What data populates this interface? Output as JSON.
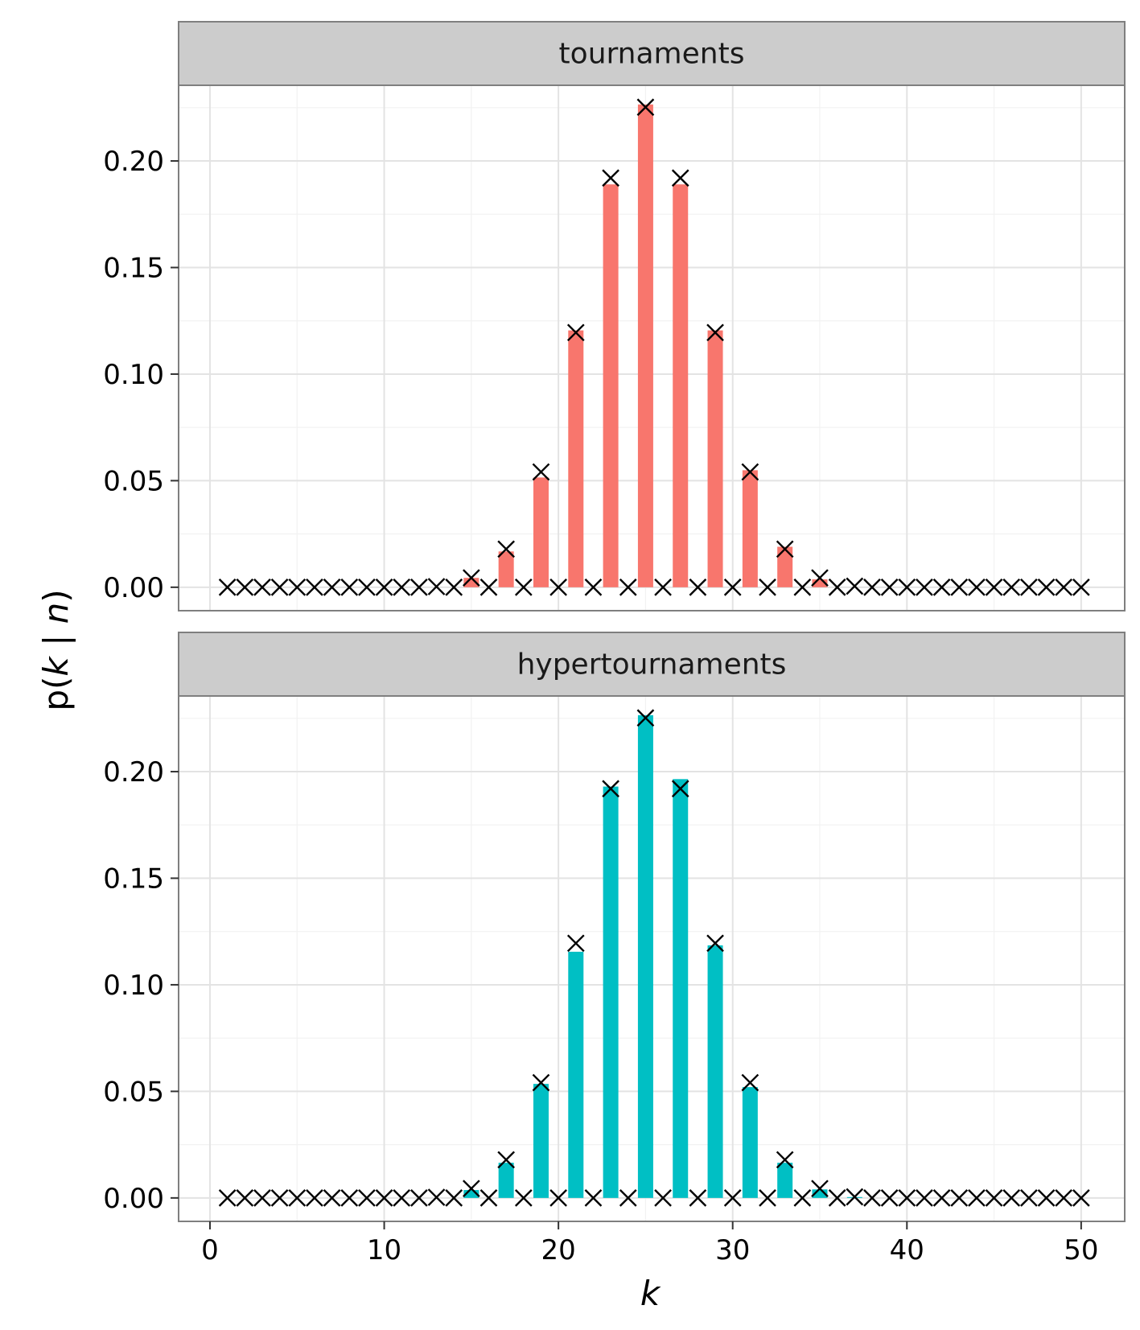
{
  "chart_data": {
    "type": "bar",
    "xlabel": "k",
    "ylabel": "p(k | n)",
    "xlim": [
      -1.8,
      52.5
    ],
    "ylim": [
      -0.011,
      0.2355
    ],
    "x_ticks": [
      "0",
      "10",
      "20",
      "30",
      "40",
      "50"
    ],
    "y_ticks": [
      "0.00",
      "0.05",
      "0.10",
      "0.15",
      "0.20"
    ],
    "grid": true,
    "legend": "none",
    "panels": [
      {
        "strip": "tournaments",
        "color": "#F8766D",
        "bars": [
          {
            "k": 15,
            "p": 0.0044
          },
          {
            "k": 17,
            "p": 0.0168
          },
          {
            "k": 19,
            "p": 0.0515
          },
          {
            "k": 21,
            "p": 0.1205
          },
          {
            "k": 23,
            "p": 0.189
          },
          {
            "k": 25,
            "p": 0.2265
          },
          {
            "k": 27,
            "p": 0.189
          },
          {
            "k": 29,
            "p": 0.1205
          },
          {
            "k": 31,
            "p": 0.0549
          },
          {
            "k": 33,
            "p": 0.019
          },
          {
            "k": 35,
            "p": 0.0037
          }
        ],
        "markers": [
          {
            "k": 1,
            "p": 0
          },
          {
            "k": 2,
            "p": 0
          },
          {
            "k": 3,
            "p": 0
          },
          {
            "k": 4,
            "p": 0
          },
          {
            "k": 5,
            "p": 0
          },
          {
            "k": 6,
            "p": 0
          },
          {
            "k": 7,
            "p": 0
          },
          {
            "k": 8,
            "p": 0
          },
          {
            "k": 9,
            "p": 0
          },
          {
            "k": 10,
            "p": 0
          },
          {
            "k": 11,
            "p": 0
          },
          {
            "k": 12,
            "p": 0
          },
          {
            "k": 13,
            "p": 0.0003
          },
          {
            "k": 14,
            "p": 0
          },
          {
            "k": 15,
            "p": 0.0044
          },
          {
            "k": 16,
            "p": 0
          },
          {
            "k": 17,
            "p": 0.0179
          },
          {
            "k": 18,
            "p": 0
          },
          {
            "k": 19,
            "p": 0.0541
          },
          {
            "k": 20,
            "p": 0
          },
          {
            "k": 21,
            "p": 0.1195
          },
          {
            "k": 22,
            "p": 0
          },
          {
            "k": 23,
            "p": 0.192
          },
          {
            "k": 24,
            "p": 0
          },
          {
            "k": 25,
            "p": 0.2252
          },
          {
            "k": 26,
            "p": 0
          },
          {
            "k": 27,
            "p": 0.192
          },
          {
            "k": 28,
            "p": 0
          },
          {
            "k": 29,
            "p": 0.1195
          },
          {
            "k": 30,
            "p": 0
          },
          {
            "k": 31,
            "p": 0.0541
          },
          {
            "k": 32,
            "p": 0
          },
          {
            "k": 33,
            "p": 0.0179
          },
          {
            "k": 34,
            "p": 0
          },
          {
            "k": 35,
            "p": 0.0044
          },
          {
            "k": 36,
            "p": 0
          },
          {
            "k": 37,
            "p": 0.0005
          },
          {
            "k": 38,
            "p": 0
          },
          {
            "k": 39,
            "p": 0
          },
          {
            "k": 40,
            "p": 0
          },
          {
            "k": 41,
            "p": 0
          },
          {
            "k": 42,
            "p": 0
          },
          {
            "k": 43,
            "p": 0
          },
          {
            "k": 44,
            "p": 0
          },
          {
            "k": 45,
            "p": 0
          },
          {
            "k": 46,
            "p": 0
          },
          {
            "k": 47,
            "p": 0
          },
          {
            "k": 48,
            "p": 0
          },
          {
            "k": 49,
            "p": 0
          },
          {
            "k": 50,
            "p": 0
          }
        ]
      },
      {
        "strip": "hypertournaments",
        "color": "#00BFC4",
        "bars": [
          {
            "k": 15,
            "p": 0.0037
          },
          {
            "k": 17,
            "p": 0.0165
          },
          {
            "k": 19,
            "p": 0.0535
          },
          {
            "k": 21,
            "p": 0.1155
          },
          {
            "k": 23,
            "p": 0.193
          },
          {
            "k": 25,
            "p": 0.2265
          },
          {
            "k": 27,
            "p": 0.1965
          },
          {
            "k": 29,
            "p": 0.1185
          },
          {
            "k": 31,
            "p": 0.052
          },
          {
            "k": 33,
            "p": 0.0165
          },
          {
            "k": 35,
            "p": 0.004
          },
          {
            "k": 37,
            "p": 0.0004
          }
        ],
        "markers": [
          {
            "k": 1,
            "p": 0
          },
          {
            "k": 2,
            "p": 0
          },
          {
            "k": 3,
            "p": 0
          },
          {
            "k": 4,
            "p": 0
          },
          {
            "k": 5,
            "p": 0
          },
          {
            "k": 6,
            "p": 0
          },
          {
            "k": 7,
            "p": 0
          },
          {
            "k": 8,
            "p": 0
          },
          {
            "k": 9,
            "p": 0
          },
          {
            "k": 10,
            "p": 0
          },
          {
            "k": 11,
            "p": 0
          },
          {
            "k": 12,
            "p": 0
          },
          {
            "k": 13,
            "p": 0.0003
          },
          {
            "k": 14,
            "p": 0
          },
          {
            "k": 15,
            "p": 0.0044
          },
          {
            "k": 16,
            "p": 0
          },
          {
            "k": 17,
            "p": 0.0179
          },
          {
            "k": 18,
            "p": 0
          },
          {
            "k": 19,
            "p": 0.0541
          },
          {
            "k": 20,
            "p": 0
          },
          {
            "k": 21,
            "p": 0.1195
          },
          {
            "k": 22,
            "p": 0
          },
          {
            "k": 23,
            "p": 0.192
          },
          {
            "k": 24,
            "p": 0
          },
          {
            "k": 25,
            "p": 0.2252
          },
          {
            "k": 26,
            "p": 0
          },
          {
            "k": 27,
            "p": 0.192
          },
          {
            "k": 28,
            "p": 0
          },
          {
            "k": 29,
            "p": 0.1195
          },
          {
            "k": 30,
            "p": 0
          },
          {
            "k": 31,
            "p": 0.0541
          },
          {
            "k": 32,
            "p": 0
          },
          {
            "k": 33,
            "p": 0.0179
          },
          {
            "k": 34,
            "p": 0
          },
          {
            "k": 35,
            "p": 0.0044
          },
          {
            "k": 36,
            "p": 0
          },
          {
            "k": 37,
            "p": 0.0005
          },
          {
            "k": 38,
            "p": 0
          },
          {
            "k": 39,
            "p": 0
          },
          {
            "k": 40,
            "p": 0
          },
          {
            "k": 41,
            "p": 0
          },
          {
            "k": 42,
            "p": 0
          },
          {
            "k": 43,
            "p": 0
          },
          {
            "k": 44,
            "p": 0
          },
          {
            "k": 45,
            "p": 0
          },
          {
            "k": 46,
            "p": 0
          },
          {
            "k": 47,
            "p": 0
          },
          {
            "k": 48,
            "p": 0
          },
          {
            "k": 49,
            "p": 0
          },
          {
            "k": 50,
            "p": 0
          }
        ]
      }
    ]
  }
}
